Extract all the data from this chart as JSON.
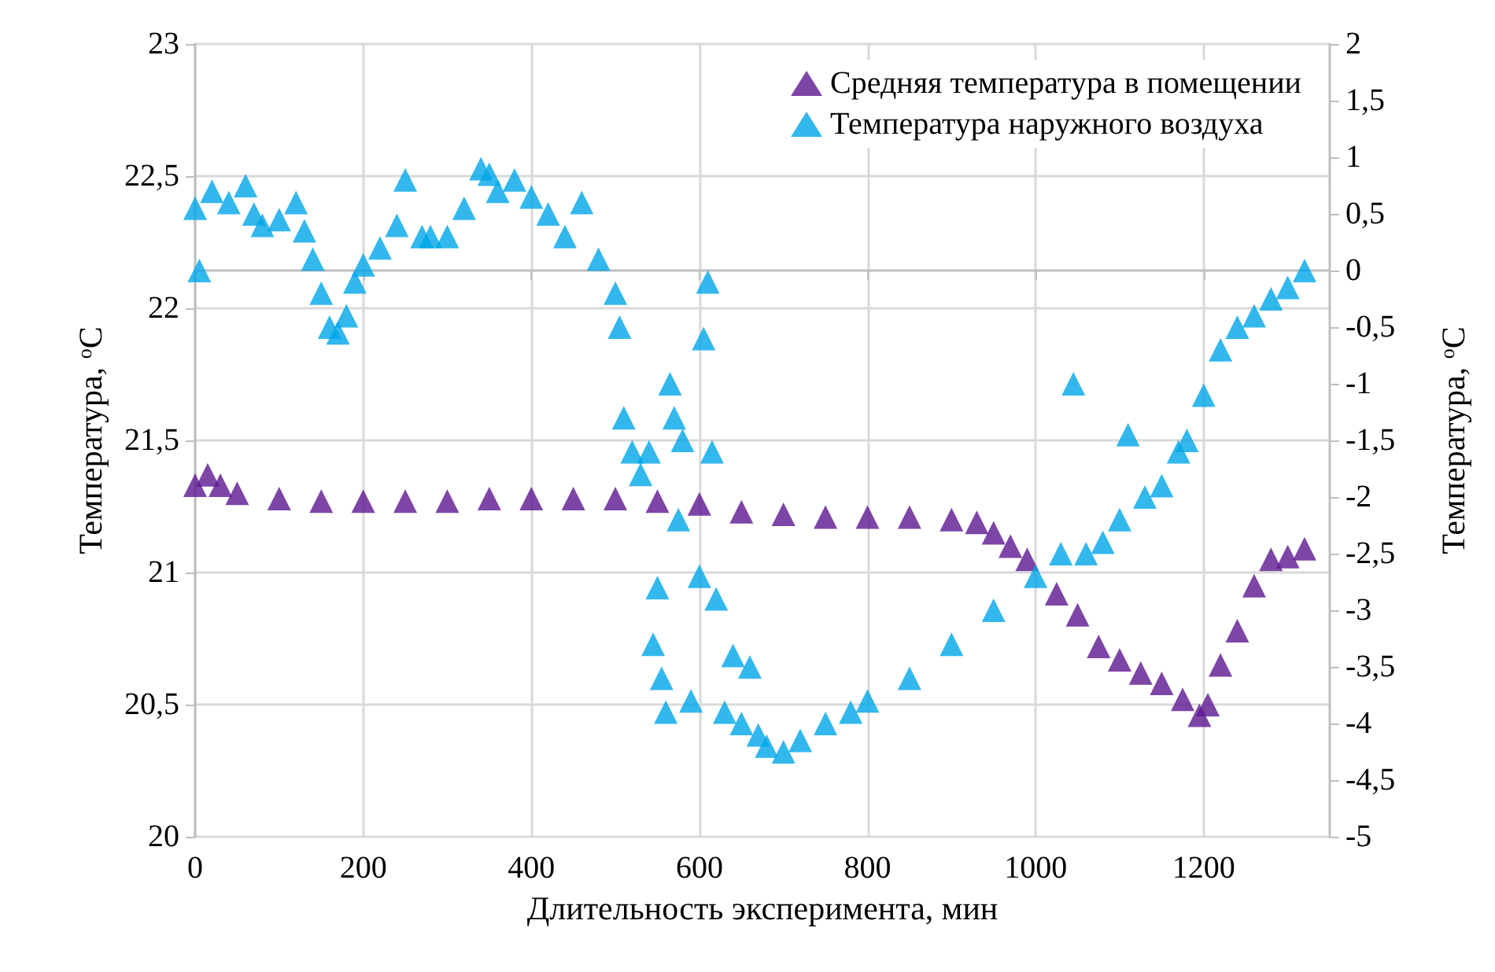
{
  "chart_data": {
    "type": "scatter",
    "xlabel": "Длительность эксперимента, мин",
    "ylabel": "Температура, $^{o}$C",
    "y2label": "Температура, $^{o}$C",
    "xlim": [
      0,
      1350
    ],
    "xticks": [
      0,
      200,
      400,
      600,
      800,
      1000,
      1200
    ],
    "ylim": [
      20,
      23
    ],
    "yticks": [
      {
        "value": 20,
        "label": "20"
      },
      {
        "value": 20.5,
        "label": "20,5"
      },
      {
        "value": 21,
        "label": "21"
      },
      {
        "value": 21.5,
        "label": "21,5"
      },
      {
        "value": 22,
        "label": "22"
      },
      {
        "value": 22.5,
        "label": "22,5"
      },
      {
        "value": 23,
        "label": "23"
      }
    ],
    "y2lim": [
      -5,
      2
    ],
    "y2ticks": [
      {
        "value": -5,
        "label": "-5"
      },
      {
        "value": -4.5,
        "label": "-4,5"
      },
      {
        "value": -4,
        "label": "-4"
      },
      {
        "value": -3.5,
        "label": "-3,5"
      },
      {
        "value": -3,
        "label": "-3"
      },
      {
        "value": -2.5,
        "label": "-2,5"
      },
      {
        "value": -2,
        "label": "-2"
      },
      {
        "value": -1.5,
        "label": "-1,5"
      },
      {
        "value": -1,
        "label": "-1"
      },
      {
        "value": -0.5,
        "label": "-0,5"
      },
      {
        "value": 0,
        "label": "0"
      },
      {
        "value": 0.5,
        "label": "0,5"
      },
      {
        "value": 1,
        "label": "1"
      },
      {
        "value": 1.5,
        "label": "1,5"
      },
      {
        "value": 2,
        "label": "2"
      }
    ],
    "grid": true,
    "legend": "top right",
    "marker": "triangle",
    "series": [
      {
        "name": "Средняя температура в помещении",
        "color": "#5c1690",
        "x": [
          0,
          15,
          30,
          50,
          100,
          150,
          200,
          250,
          300,
          350,
          400,
          450,
          500,
          550,
          600,
          650,
          700,
          750,
          800,
          850,
          900,
          930,
          950,
          970,
          990,
          1025,
          1050,
          1075,
          1100,
          1125,
          1150,
          1175,
          1195,
          1205,
          1220,
          1240,
          1260,
          1280,
          1300,
          1320
        ],
        "values": [
          21.33,
          21.37,
          21.33,
          21.3,
          21.28,
          21.27,
          21.27,
          21.27,
          21.27,
          21.28,
          21.28,
          21.28,
          21.28,
          21.27,
          21.26,
          21.23,
          21.22,
          21.21,
          21.21,
          21.21,
          21.2,
          21.19,
          21.15,
          21.1,
          21.05,
          20.92,
          20.84,
          20.72,
          20.67,
          20.62,
          20.58,
          20.52,
          20.46,
          20.5,
          20.65,
          20.78,
          20.95,
          21.05,
          21.06,
          21.09
        ]
      },
      {
        "name": "Температура наружного воздуха",
        "color": "#00a6e8",
        "axis": "y2",
        "x": [
          0,
          5,
          20,
          40,
          60,
          70,
          80,
          100,
          120,
          130,
          140,
          150,
          160,
          170,
          180,
          190,
          200,
          220,
          240,
          250,
          270,
          280,
          300,
          320,
          340,
          350,
          360,
          380,
          400,
          420,
          440,
          460,
          480,
          500,
          505,
          510,
          520,
          530,
          540,
          545,
          550,
          555,
          560,
          565,
          570,
          575,
          580,
          590,
          600,
          605,
          610,
          615,
          620,
          630,
          640,
          650,
          660,
          670,
          680,
          700,
          720,
          750,
          780,
          800,
          850,
          900,
          950,
          1000,
          1030,
          1045,
          1060,
          1080,
          1100,
          1110,
          1130,
          1150,
          1170,
          1180,
          1200,
          1220,
          1240,
          1260,
          1280,
          1300,
          1320
        ],
        "values": [
          0.55,
          0.0,
          0.7,
          0.6,
          0.75,
          0.5,
          0.4,
          0.45,
          0.6,
          0.35,
          0.1,
          -0.2,
          -0.5,
          -0.55,
          -0.4,
          -0.1,
          0.05,
          0.2,
          0.4,
          0.8,
          0.3,
          0.3,
          0.3,
          0.55,
          0.9,
          0.85,
          0.7,
          0.8,
          0.65,
          0.5,
          0.3,
          0.6,
          0.1,
          -0.2,
          -0.5,
          -1.3,
          -1.6,
          -1.8,
          -1.6,
          -3.3,
          -2.8,
          -3.6,
          -3.9,
          -1.0,
          -1.3,
          -2.2,
          -1.5,
          -3.8,
          -2.7,
          -0.6,
          -0.1,
          -1.6,
          -2.9,
          -3.9,
          -3.4,
          -4.0,
          -3.5,
          -4.1,
          -4.2,
          -4.25,
          -4.15,
          -4.0,
          -3.9,
          -3.8,
          -3.6,
          -3.3,
          -3.0,
          -2.7,
          -2.5,
          -1.0,
          -2.5,
          -2.4,
          -2.2,
          -1.45,
          -2.0,
          -1.9,
          -1.6,
          -1.5,
          -1.1,
          -0.7,
          -0.5,
          -0.4,
          -0.25,
          -0.15,
          0.0
        ]
      }
    ]
  }
}
